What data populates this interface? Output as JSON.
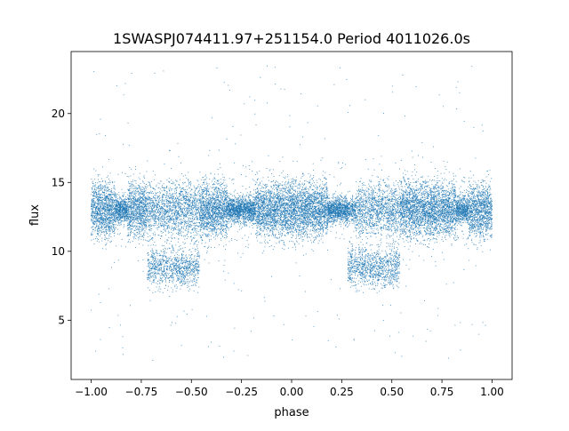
{
  "chart_data": {
    "type": "scatter",
    "title": "1SWASPJ074411.97+251154.0 Period 4011026.0s",
    "xlabel": "phase",
    "ylabel": "flux",
    "xlim": [
      -1.1,
      1.1
    ],
    "ylim": [
      0.7,
      24.5
    ],
    "x_ticks": [
      -1.0,
      -0.75,
      -0.5,
      -0.25,
      0.0,
      0.25,
      0.5,
      0.75,
      1.0
    ],
    "x_tick_labels": [
      "−1.00",
      "−0.75",
      "−0.50",
      "−0.25",
      "0.00",
      "0.25",
      "0.50",
      "0.75",
      "1.00"
    ],
    "y_ticks": [
      5,
      10,
      15,
      20
    ],
    "y_tick_labels": [
      "5",
      "10",
      "15",
      "20"
    ],
    "grid": false,
    "legend": "none",
    "marker_color": "#1f77b4",
    "point_count_approx": 20000,
    "bands": [
      {
        "name": "main band",
        "phase_range": [
          -1.0,
          1.0
        ],
        "flux_center": 13.0,
        "flux_spread": [
          11.0,
          15.2
        ]
      },
      {
        "name": "lower band",
        "phase_range": [
          -0.72,
          -0.46
        ],
        "flux_center": 8.8,
        "flux_spread": [
          7.5,
          10.8
        ]
      },
      {
        "name": "lower band",
        "phase_range": [
          0.28,
          0.54
        ],
        "flux_center": 8.8,
        "flux_spread": [
          7.5,
          10.8
        ]
      }
    ],
    "outlier_range": [
      2.0,
      23.5
    ],
    "symmetry": "pattern repeats with phase period 1.0"
  }
}
